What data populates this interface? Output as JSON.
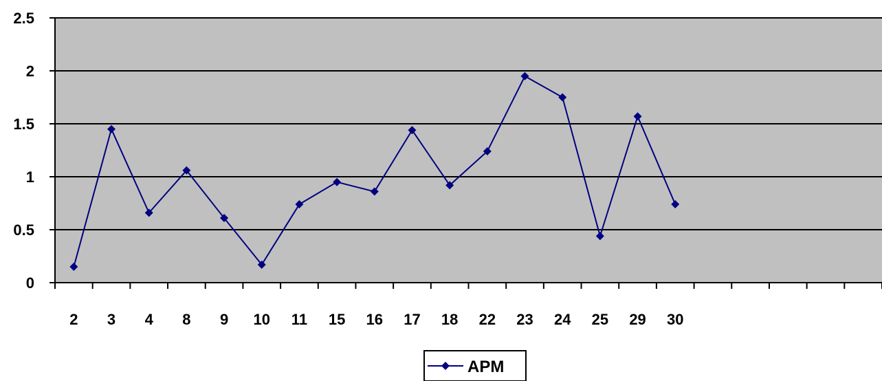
{
  "chart_data": {
    "type": "line",
    "categories": [
      "2",
      "3",
      "4",
      "8",
      "9",
      "10",
      "11",
      "15",
      "16",
      "17",
      "18",
      "22",
      "23",
      "24",
      "25",
      "29",
      "30"
    ],
    "total_category_slots": 22,
    "series": [
      {
        "name": "APM",
        "values": [
          0.15,
          1.45,
          0.66,
          1.06,
          0.61,
          0.17,
          0.74,
          0.95,
          0.86,
          1.44,
          0.92,
          1.24,
          1.95,
          1.75,
          0.44,
          1.57,
          0.74
        ],
        "color": "#000080",
        "marker": "diamond"
      }
    ],
    "ylim": [
      0,
      2.5
    ],
    "yticks": [
      "0",
      "0.5",
      "1",
      "1.5",
      "2",
      "2.5"
    ],
    "title": "",
    "xlabel": "",
    "ylabel": "",
    "grid": true,
    "plot_background": "#C0C0C0",
    "legend_position": "bottom"
  }
}
